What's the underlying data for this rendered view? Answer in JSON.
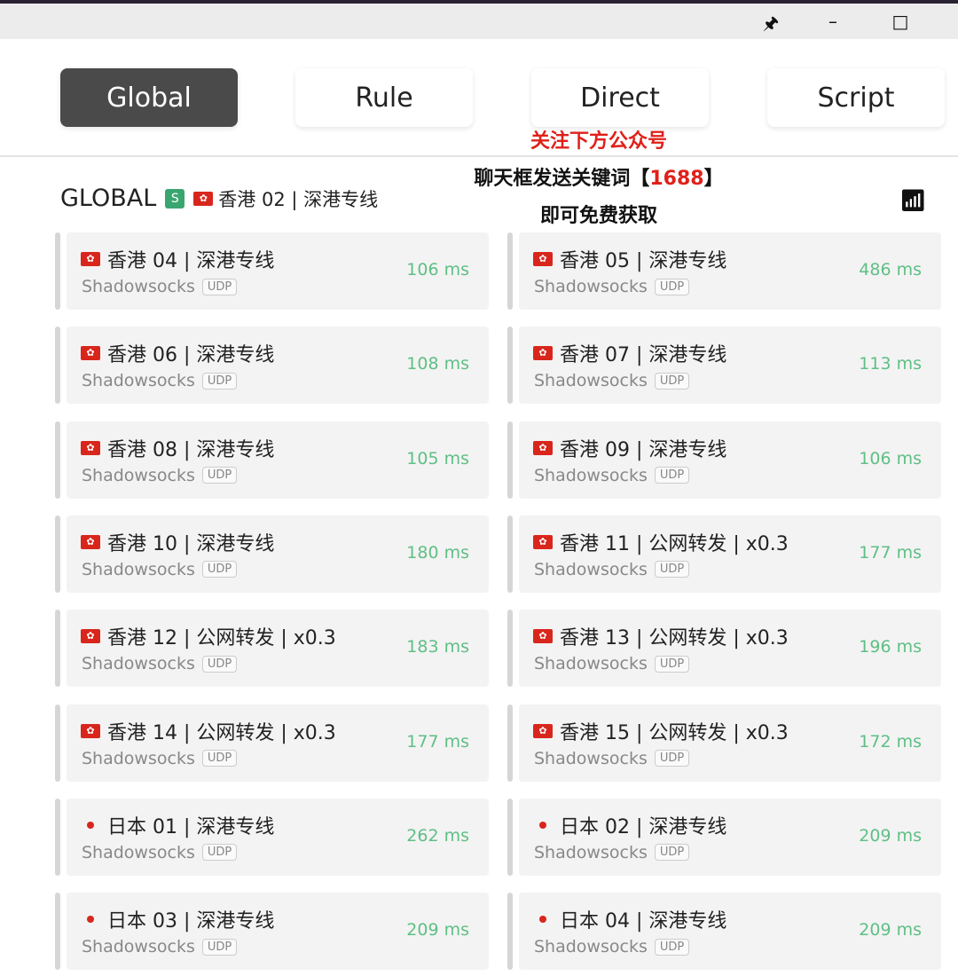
{
  "window": {
    "pin_icon": "pin-icon",
    "minimize_icon": "minimize-icon",
    "maximize_icon": "maximize-icon"
  },
  "modes": [
    {
      "label": "Global",
      "active": true
    },
    {
      "label": "Rule"
    },
    {
      "label": "Direct"
    },
    {
      "label": "Script"
    }
  ],
  "overlay": {
    "line1": "关注下方公众号",
    "line2_pre": "聊天框发送关键词【",
    "line2_key": "1688",
    "line2_post": "】",
    "line3": "即可免费获取"
  },
  "group": {
    "title": "GLOBAL",
    "badge": "S",
    "current": "香港 02 | 深港专线"
  },
  "colors": {
    "active_tab": "#4a4a4a",
    "delay": "#5fbf85",
    "badge": "#3aa66f"
  },
  "proxies": [
    {
      "flag": "hk",
      "name": "香港 04 | 深港专线",
      "type": "Shadowsocks",
      "udp": "UDP",
      "delay": "106 ms"
    },
    {
      "flag": "hk",
      "name": "香港 05 | 深港专线",
      "type": "Shadowsocks",
      "udp": "UDP",
      "delay": "486 ms"
    },
    {
      "flag": "hk",
      "name": "香港 06 | 深港专线",
      "type": "Shadowsocks",
      "udp": "UDP",
      "delay": "108 ms"
    },
    {
      "flag": "hk",
      "name": "香港 07 | 深港专线",
      "type": "Shadowsocks",
      "udp": "UDP",
      "delay": "113 ms"
    },
    {
      "flag": "hk",
      "name": "香港 08 | 深港专线",
      "type": "Shadowsocks",
      "udp": "UDP",
      "delay": "105 ms"
    },
    {
      "flag": "hk",
      "name": "香港 09 | 深港专线",
      "type": "Shadowsocks",
      "udp": "UDP",
      "delay": "106 ms"
    },
    {
      "flag": "hk",
      "name": "香港 10 | 深港专线",
      "type": "Shadowsocks",
      "udp": "UDP",
      "delay": "180 ms"
    },
    {
      "flag": "hk",
      "name": "香港 11 | 公网转发 | x0.3",
      "type": "Shadowsocks",
      "udp": "UDP",
      "delay": "177 ms"
    },
    {
      "flag": "hk",
      "name": "香港 12 | 公网转发 | x0.3",
      "type": "Shadowsocks",
      "udp": "UDP",
      "delay": "183 ms"
    },
    {
      "flag": "hk",
      "name": "香港 13 | 公网转发 | x0.3",
      "type": "Shadowsocks",
      "udp": "UDP",
      "delay": "196 ms"
    },
    {
      "flag": "hk",
      "name": "香港 14 | 公网转发 | x0.3",
      "type": "Shadowsocks",
      "udp": "UDP",
      "delay": "177 ms"
    },
    {
      "flag": "hk",
      "name": "香港 15 | 公网转发 | x0.3",
      "type": "Shadowsocks",
      "udp": "UDP",
      "delay": "172 ms"
    },
    {
      "flag": "jp",
      "name": "日本 01 | 深港专线",
      "type": "Shadowsocks",
      "udp": "UDP",
      "delay": "262 ms"
    },
    {
      "flag": "jp",
      "name": "日本 02 | 深港专线",
      "type": "Shadowsocks",
      "udp": "UDP",
      "delay": "209 ms"
    },
    {
      "flag": "jp",
      "name": "日本 03 | 深港专线",
      "type": "Shadowsocks",
      "udp": "UDP",
      "delay": "209 ms"
    },
    {
      "flag": "jp",
      "name": "日本 04 | 深港专线",
      "type": "Shadowsocks",
      "udp": "UDP",
      "delay": "209 ms"
    }
  ]
}
